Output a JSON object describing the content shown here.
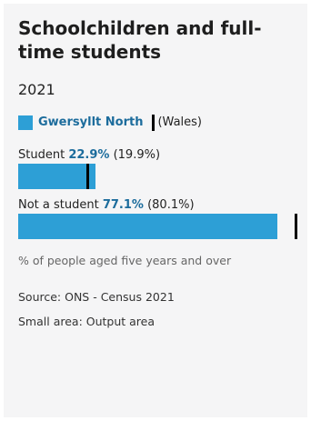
{
  "colors": {
    "accent": "#2d9fd6",
    "accent_text": "#1c6c9c",
    "marker": "#000000",
    "panel": "#f5f5f6"
  },
  "chart_data": {
    "type": "bar",
    "title": "Schoolchildren and full-time students",
    "subtitle": "2021",
    "xlim": [
      0,
      80.1
    ],
    "legend": {
      "area_name": "Gwersyllt North",
      "comparison_name": "(Wales)"
    },
    "categories": [
      "Student",
      "Not a student"
    ],
    "series": [
      {
        "name": "Gwersyllt North",
        "values": [
          22.9,
          77.1
        ],
        "value_labels": [
          "22.9%",
          "77.1%"
        ]
      },
      {
        "name": "(Wales)",
        "values": [
          19.9,
          80.1
        ],
        "value_labels": [
          "(19.9%)",
          "(80.1%)"
        ]
      }
    ],
    "unit_note": "% of people aged five years and over",
    "source": "Source: ONS - Census 2021",
    "small_area": "Small area: Output area"
  }
}
